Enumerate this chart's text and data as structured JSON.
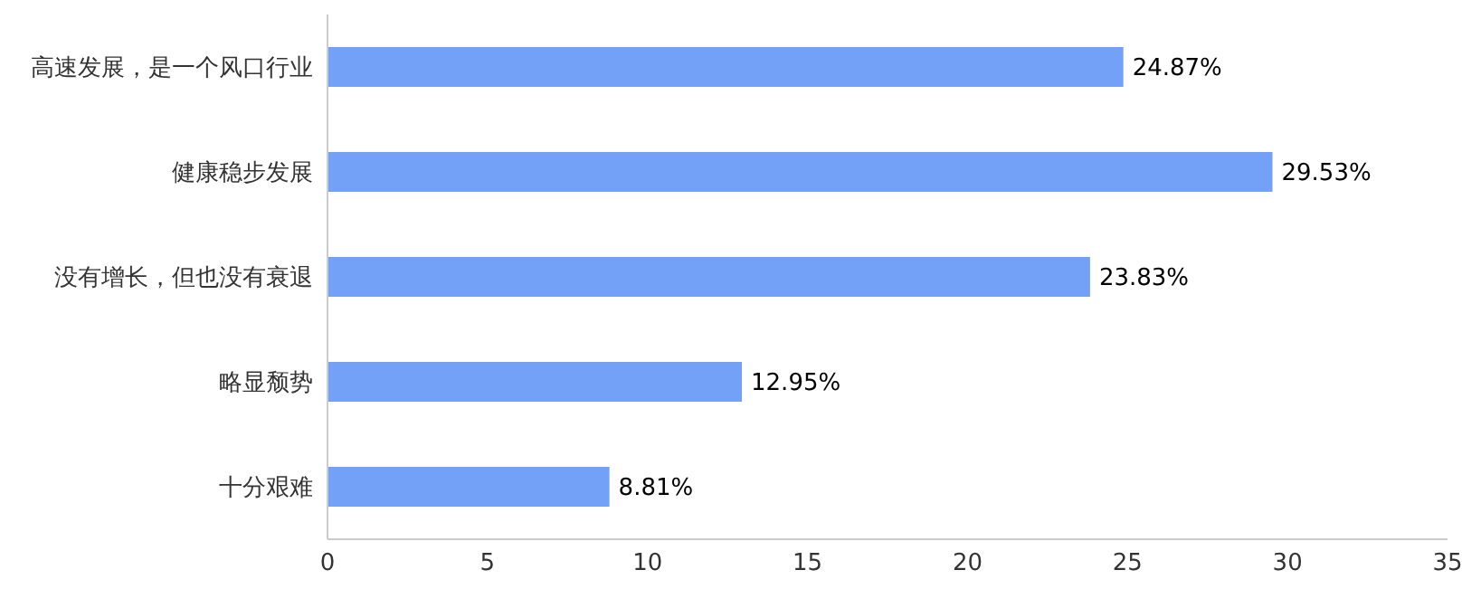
{
  "chart_data": {
    "type": "bar",
    "orientation": "horizontal",
    "categories": [
      "高速发展，是一个风口行业",
      "健康稳步发展",
      "没有增长，但也没有衰退",
      "略显颓势",
      "十分艰难"
    ],
    "values": [
      24.87,
      29.53,
      23.83,
      12.95,
      8.81
    ],
    "value_labels": [
      "24.87%",
      "29.53%",
      "23.83%",
      "12.95%",
      "8.81%"
    ],
    "color": "#73a1f7",
    "xlim": [
      0,
      35
    ],
    "xticks": [
      0,
      5,
      10,
      15,
      20,
      25,
      30,
      35
    ],
    "grid": false
  }
}
